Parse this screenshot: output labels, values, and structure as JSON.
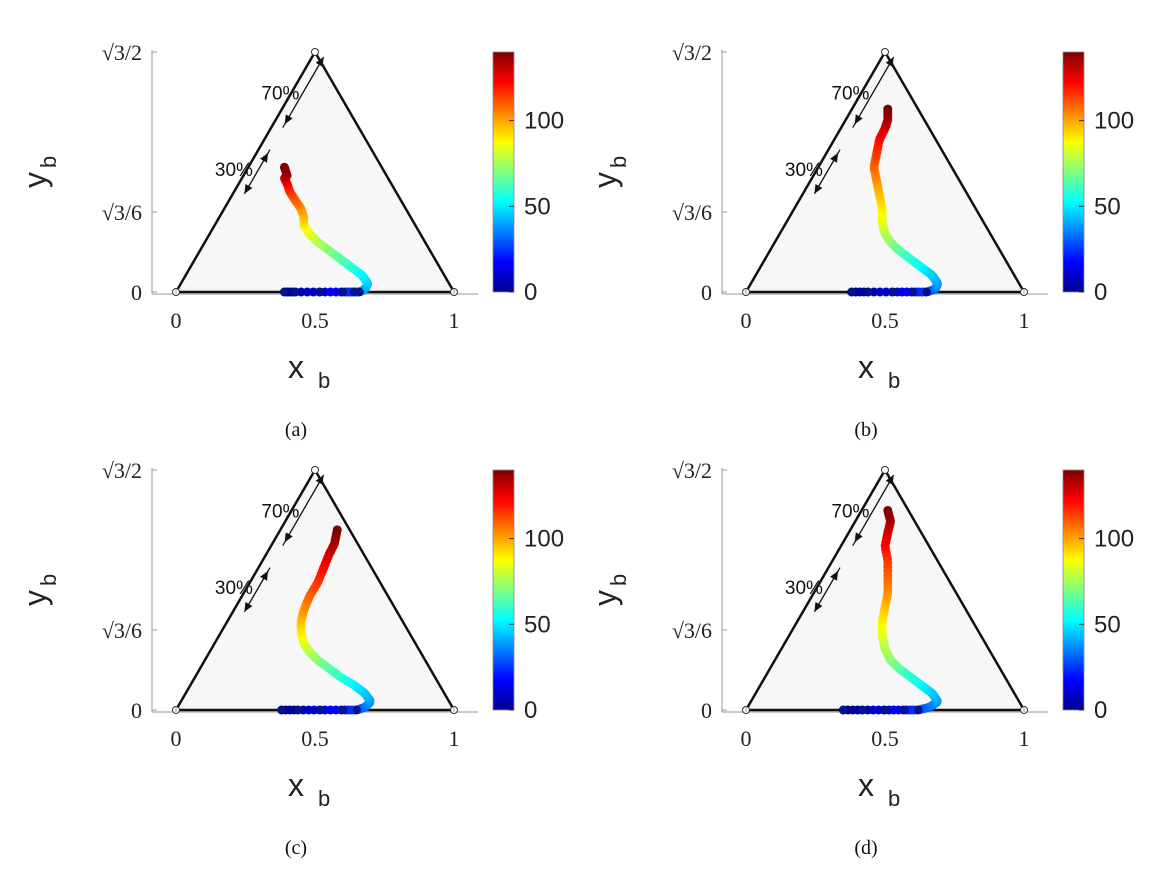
{
  "chart_data": [
    {
      "type": "scatter",
      "caption": "(a)",
      "xlabel": "x",
      "xlabel_sub": "b",
      "ylabel": "y",
      "ylabel_sub": "b",
      "xticks": [
        "0",
        "0.5",
        "1"
      ],
      "yticks": [
        "0",
        "√3/6",
        "√3/2"
      ],
      "xlim": [
        0,
        1
      ],
      "ylim": [
        0,
        0.866
      ],
      "annotations": [
        "70%",
        "30%"
      ],
      "colorbar": {
        "ticks": [
          "0",
          "50",
          "100"
        ],
        "range": [
          0,
          140
        ],
        "colormap": "jet"
      },
      "points": [
        [
          0.39,
          0
        ],
        [
          0.43,
          0
        ],
        [
          0.52,
          0
        ],
        [
          0.6,
          0
        ],
        [
          0.64,
          0
        ],
        [
          0.66,
          0
        ],
        [
          0.68,
          0.01
        ],
        [
          0.69,
          0.03
        ],
        [
          0.67,
          0.06
        ],
        [
          0.63,
          0.09
        ],
        [
          0.59,
          0.12
        ],
        [
          0.55,
          0.15
        ],
        [
          0.51,
          0.18
        ],
        [
          0.48,
          0.21
        ],
        [
          0.46,
          0.24
        ],
        [
          0.46,
          0.27
        ],
        [
          0.45,
          0.3
        ],
        [
          0.43,
          0.33
        ],
        [
          0.41,
          0.36
        ],
        [
          0.4,
          0.39
        ],
        [
          0.39,
          0.41
        ],
        [
          0.4,
          0.42
        ],
        [
          0.39,
          0.45
        ]
      ]
    },
    {
      "type": "scatter",
      "caption": "(b)",
      "xlabel": "x",
      "xlabel_sub": "b",
      "ylabel": "y",
      "ylabel_sub": "b",
      "xticks": [
        "0",
        "0.5",
        "1"
      ],
      "yticks": [
        "0",
        "√3/6",
        "√3/2"
      ],
      "xlim": [
        0,
        1
      ],
      "ylim": [
        0,
        0.866
      ],
      "annotations": [
        "70%",
        "30%"
      ],
      "colorbar": {
        "ticks": [
          "0",
          "50",
          "100"
        ],
        "range": [
          0,
          140
        ],
        "colormap": "jet"
      },
      "points": [
        [
          0.38,
          0
        ],
        [
          0.44,
          0
        ],
        [
          0.53,
          0
        ],
        [
          0.6,
          0
        ],
        [
          0.65,
          0
        ],
        [
          0.68,
          0.01
        ],
        [
          0.69,
          0.03
        ],
        [
          0.67,
          0.06
        ],
        [
          0.63,
          0.09
        ],
        [
          0.59,
          0.12
        ],
        [
          0.55,
          0.15
        ],
        [
          0.52,
          0.18
        ],
        [
          0.5,
          0.21
        ],
        [
          0.49,
          0.25
        ],
        [
          0.49,
          0.3
        ],
        [
          0.48,
          0.35
        ],
        [
          0.47,
          0.4
        ],
        [
          0.46,
          0.45
        ],
        [
          0.47,
          0.5
        ],
        [
          0.48,
          0.55
        ],
        [
          0.5,
          0.59
        ],
        [
          0.51,
          0.62
        ],
        [
          0.51,
          0.66
        ]
      ]
    },
    {
      "type": "scatter",
      "caption": "(c)",
      "xlabel": "x",
      "xlabel_sub": "b",
      "ylabel": "y",
      "ylabel_sub": "b",
      "xticks": [
        "0",
        "0.5",
        "1"
      ],
      "yticks": [
        "0",
        "√3/6",
        "√3/2"
      ],
      "xlim": [
        0,
        1
      ],
      "ylim": [
        0,
        0.866
      ],
      "annotations": [
        "70%",
        "30%"
      ],
      "colorbar": {
        "ticks": [
          "0",
          "50",
          "100"
        ],
        "range": [
          0,
          140
        ],
        "colormap": "jet"
      },
      "points": [
        [
          0.38,
          0
        ],
        [
          0.44,
          0
        ],
        [
          0.52,
          0
        ],
        [
          0.6,
          0
        ],
        [
          0.65,
          0
        ],
        [
          0.68,
          0.01
        ],
        [
          0.7,
          0.03
        ],
        [
          0.68,
          0.06
        ],
        [
          0.64,
          0.09
        ],
        [
          0.59,
          0.12
        ],
        [
          0.55,
          0.15
        ],
        [
          0.51,
          0.18
        ],
        [
          0.48,
          0.21
        ],
        [
          0.46,
          0.24
        ],
        [
          0.45,
          0.28
        ],
        [
          0.45,
          0.32
        ],
        [
          0.46,
          0.36
        ],
        [
          0.48,
          0.41
        ],
        [
          0.51,
          0.46
        ],
        [
          0.53,
          0.51
        ],
        [
          0.55,
          0.56
        ],
        [
          0.57,
          0.6
        ],
        [
          0.58,
          0.65
        ]
      ]
    },
    {
      "type": "scatter",
      "caption": "(d)",
      "xlabel": "x",
      "xlabel_sub": "b",
      "ylabel": "y",
      "ylabel_sub": "b",
      "xticks": [
        "0",
        "0.5",
        "1"
      ],
      "yticks": [
        "0",
        "√3/6",
        "√3/2"
      ],
      "xlim": [
        0,
        1
      ],
      "ylim": [
        0,
        0.866
      ],
      "annotations": [
        "70%",
        "30%"
      ],
      "colorbar": {
        "ticks": [
          "0",
          "50",
          "100"
        ],
        "range": [
          0,
          140
        ],
        "colormap": "jet"
      },
      "points": [
        [
          0.35,
          0
        ],
        [
          0.42,
          0
        ],
        [
          0.5,
          0
        ],
        [
          0.57,
          0
        ],
        [
          0.62,
          0
        ],
        [
          0.66,
          0.01
        ],
        [
          0.69,
          0.03
        ],
        [
          0.67,
          0.06
        ],
        [
          0.63,
          0.09
        ],
        [
          0.59,
          0.12
        ],
        [
          0.55,
          0.15
        ],
        [
          0.52,
          0.18
        ],
        [
          0.5,
          0.22
        ],
        [
          0.49,
          0.27
        ],
        [
          0.49,
          0.32
        ],
        [
          0.5,
          0.37
        ],
        [
          0.51,
          0.42
        ],
        [
          0.51,
          0.48
        ],
        [
          0.51,
          0.54
        ],
        [
          0.5,
          0.59
        ],
        [
          0.51,
          0.64
        ],
        [
          0.52,
          0.68
        ],
        [
          0.51,
          0.72
        ]
      ]
    }
  ]
}
